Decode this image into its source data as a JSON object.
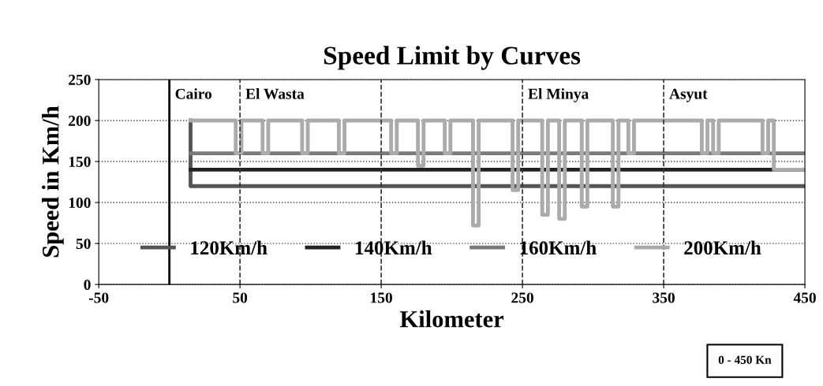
{
  "chart_data": {
    "type": "line",
    "title": "Speed Limit by Curves",
    "xlabel": "Kilometer",
    "ylabel": "Speed in Km/h",
    "xlim": [
      -50,
      450
    ],
    "xticks": [
      -50,
      50,
      150,
      250,
      350,
      450
    ],
    "ylim": [
      0,
      250
    ],
    "yticks": [
      0,
      50,
      100,
      150,
      200,
      250
    ],
    "grid": "y",
    "legend": "bottom",
    "marker": "none",
    "line_style": "solid",
    "series": [
      {
        "name": "120Km/h",
        "color": "#555555",
        "x": [
          15,
          15,
          450
        ],
        "values": [
          200,
          120,
          120
        ]
      },
      {
        "name": "140Km/h",
        "color": "#222222",
        "x": [
          15,
          450
        ],
        "values": [
          140,
          140
        ]
      },
      {
        "name": "160Km/h",
        "color": "#7a7a7a",
        "x": [
          15,
          450
        ],
        "values": [
          160,
          160
        ]
      },
      {
        "name": "200Km/h",
        "color": "#ababab",
        "x": [
          15,
          47,
          47,
          51,
          51,
          66,
          66,
          70,
          70,
          94,
          94,
          98,
          98,
          120,
          120,
          124,
          124,
          157,
          157,
          161,
          161,
          176,
          176,
          180,
          180,
          195,
          195,
          199,
          199,
          215,
          215,
          219,
          219,
          243,
          243,
          247,
          247,
          264,
          264,
          268,
          268,
          276,
          276,
          280,
          280,
          292,
          292,
          296,
          296,
          314,
          314,
          318,
          318,
          325,
          325,
          329,
          329,
          377,
          377,
          381,
          381,
          385,
          385,
          389,
          389,
          420,
          420,
          424,
          424,
          428,
          428,
          450
        ],
        "values": [
          200,
          200,
          160,
          160,
          200,
          200,
          160,
          160,
          200,
          200,
          160,
          160,
          200,
          200,
          160,
          160,
          200,
          200,
          160,
          160,
          200,
          200,
          145,
          145,
          200,
          200,
          160,
          160,
          200,
          200,
          72,
          72,
          200,
          200,
          115,
          115,
          200,
          200,
          85,
          85,
          200,
          200,
          80,
          80,
          200,
          200,
          95,
          95,
          200,
          200,
          95,
          95,
          200,
          200,
          160,
          160,
          200,
          200,
          160,
          160,
          200,
          200,
          160,
          160,
          200,
          200,
          160,
          160,
          200,
          200,
          140,
          140
        ]
      }
    ],
    "ref_lines": [
      {
        "axis": "x",
        "value": 0,
        "label": "Cairo",
        "color": "#000000",
        "line_style": "solid"
      },
      {
        "axis": "x",
        "value": 50,
        "label": "El Wasta",
        "color": "#333333",
        "line_style": "dashed"
      },
      {
        "axis": "x",
        "value": 150,
        "color": "#333333",
        "line_style": "dashed"
      },
      {
        "axis": "x",
        "value": 250,
        "label": "El Minya",
        "color": "#333333",
        "line_style": "dashed"
      },
      {
        "axis": "x",
        "value": 350,
        "label": "Asyut",
        "color": "#333333",
        "line_style": "dashed"
      }
    ],
    "annotations": [
      "0 - 450 Kn"
    ]
  }
}
